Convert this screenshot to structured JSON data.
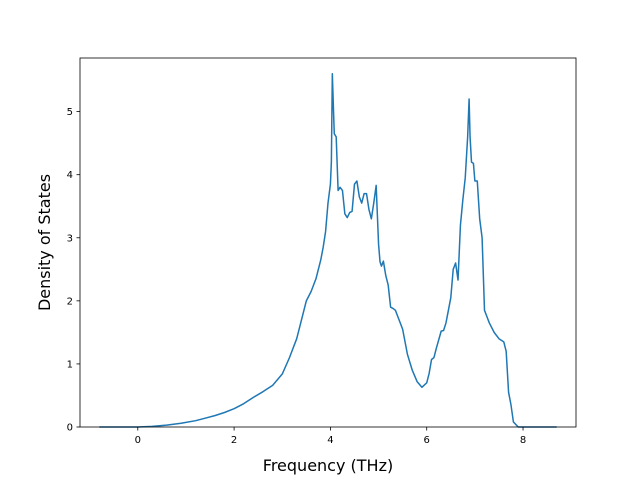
{
  "chart_data": {
    "type": "line",
    "title": "",
    "xlabel": "Frequency (THz)",
    "ylabel": "Density of States",
    "xlim": [
      -1.2,
      9.1
    ],
    "ylim": [
      0,
      5.85
    ],
    "xticks": [
      0,
      2,
      4,
      6,
      8
    ],
    "yticks": [
      0,
      1,
      2,
      3,
      4,
      5
    ],
    "grid": false,
    "legend": "none",
    "series": [
      {
        "color": "#1f77b4",
        "x": [
          -0.8,
          -0.5,
          -0.2,
          0.0,
          0.3,
          0.6,
          0.9,
          1.2,
          1.4,
          1.6,
          1.8,
          2.0,
          2.2,
          2.4,
          2.6,
          2.8,
          3.0,
          3.15,
          3.3,
          3.4,
          3.5,
          3.6,
          3.7,
          3.8,
          3.85,
          3.9,
          3.95,
          4.0,
          4.02,
          4.04,
          4.08,
          4.12,
          4.16,
          4.2,
          4.25,
          4.3,
          4.35,
          4.4,
          4.45,
          4.5,
          4.55,
          4.6,
          4.65,
          4.7,
          4.75,
          4.8,
          4.85,
          4.9,
          4.95,
          5.0,
          5.03,
          5.06,
          5.1,
          5.15,
          5.2,
          5.25,
          5.3,
          5.35,
          5.4,
          5.45,
          5.5,
          5.6,
          5.7,
          5.8,
          5.9,
          6.0,
          6.05,
          6.1,
          6.15,
          6.2,
          6.3,
          6.35,
          6.4,
          6.45,
          6.5,
          6.55,
          6.6,
          6.65,
          6.7,
          6.75,
          6.8,
          6.85,
          6.88,
          6.9,
          6.93,
          6.97,
          7.0,
          7.05,
          7.1,
          7.15,
          7.2,
          7.25,
          7.3,
          7.4,
          7.5,
          7.6,
          7.65,
          7.7,
          7.75,
          7.8,
          7.9,
          8.0,
          8.3,
          8.7
        ],
        "y": [
          0.0,
          0.0,
          0.0,
          0.0,
          0.01,
          0.03,
          0.06,
          0.1,
          0.14,
          0.18,
          0.23,
          0.29,
          0.37,
          0.47,
          0.56,
          0.66,
          0.84,
          1.1,
          1.4,
          1.7,
          2.0,
          2.15,
          2.35,
          2.65,
          2.85,
          3.1,
          3.55,
          3.85,
          4.2,
          5.6,
          4.65,
          4.6,
          3.75,
          3.8,
          3.75,
          3.38,
          3.32,
          3.4,
          3.42,
          3.85,
          3.9,
          3.65,
          3.55,
          3.7,
          3.7,
          3.45,
          3.3,
          3.55,
          3.83,
          2.9,
          2.62,
          2.55,
          2.63,
          2.4,
          2.25,
          1.9,
          1.88,
          1.85,
          1.75,
          1.65,
          1.55,
          1.15,
          0.9,
          0.72,
          0.63,
          0.7,
          0.85,
          1.07,
          1.1,
          1.25,
          1.52,
          1.53,
          1.65,
          1.85,
          2.05,
          2.5,
          2.6,
          2.33,
          3.2,
          3.6,
          3.95,
          4.6,
          5.2,
          4.6,
          4.2,
          4.18,
          3.9,
          3.9,
          3.3,
          3.0,
          1.85,
          1.75,
          1.65,
          1.5,
          1.4,
          1.35,
          1.2,
          0.55,
          0.35,
          0.08,
          0.0,
          0.0,
          0.0,
          0.0
        ]
      }
    ]
  }
}
